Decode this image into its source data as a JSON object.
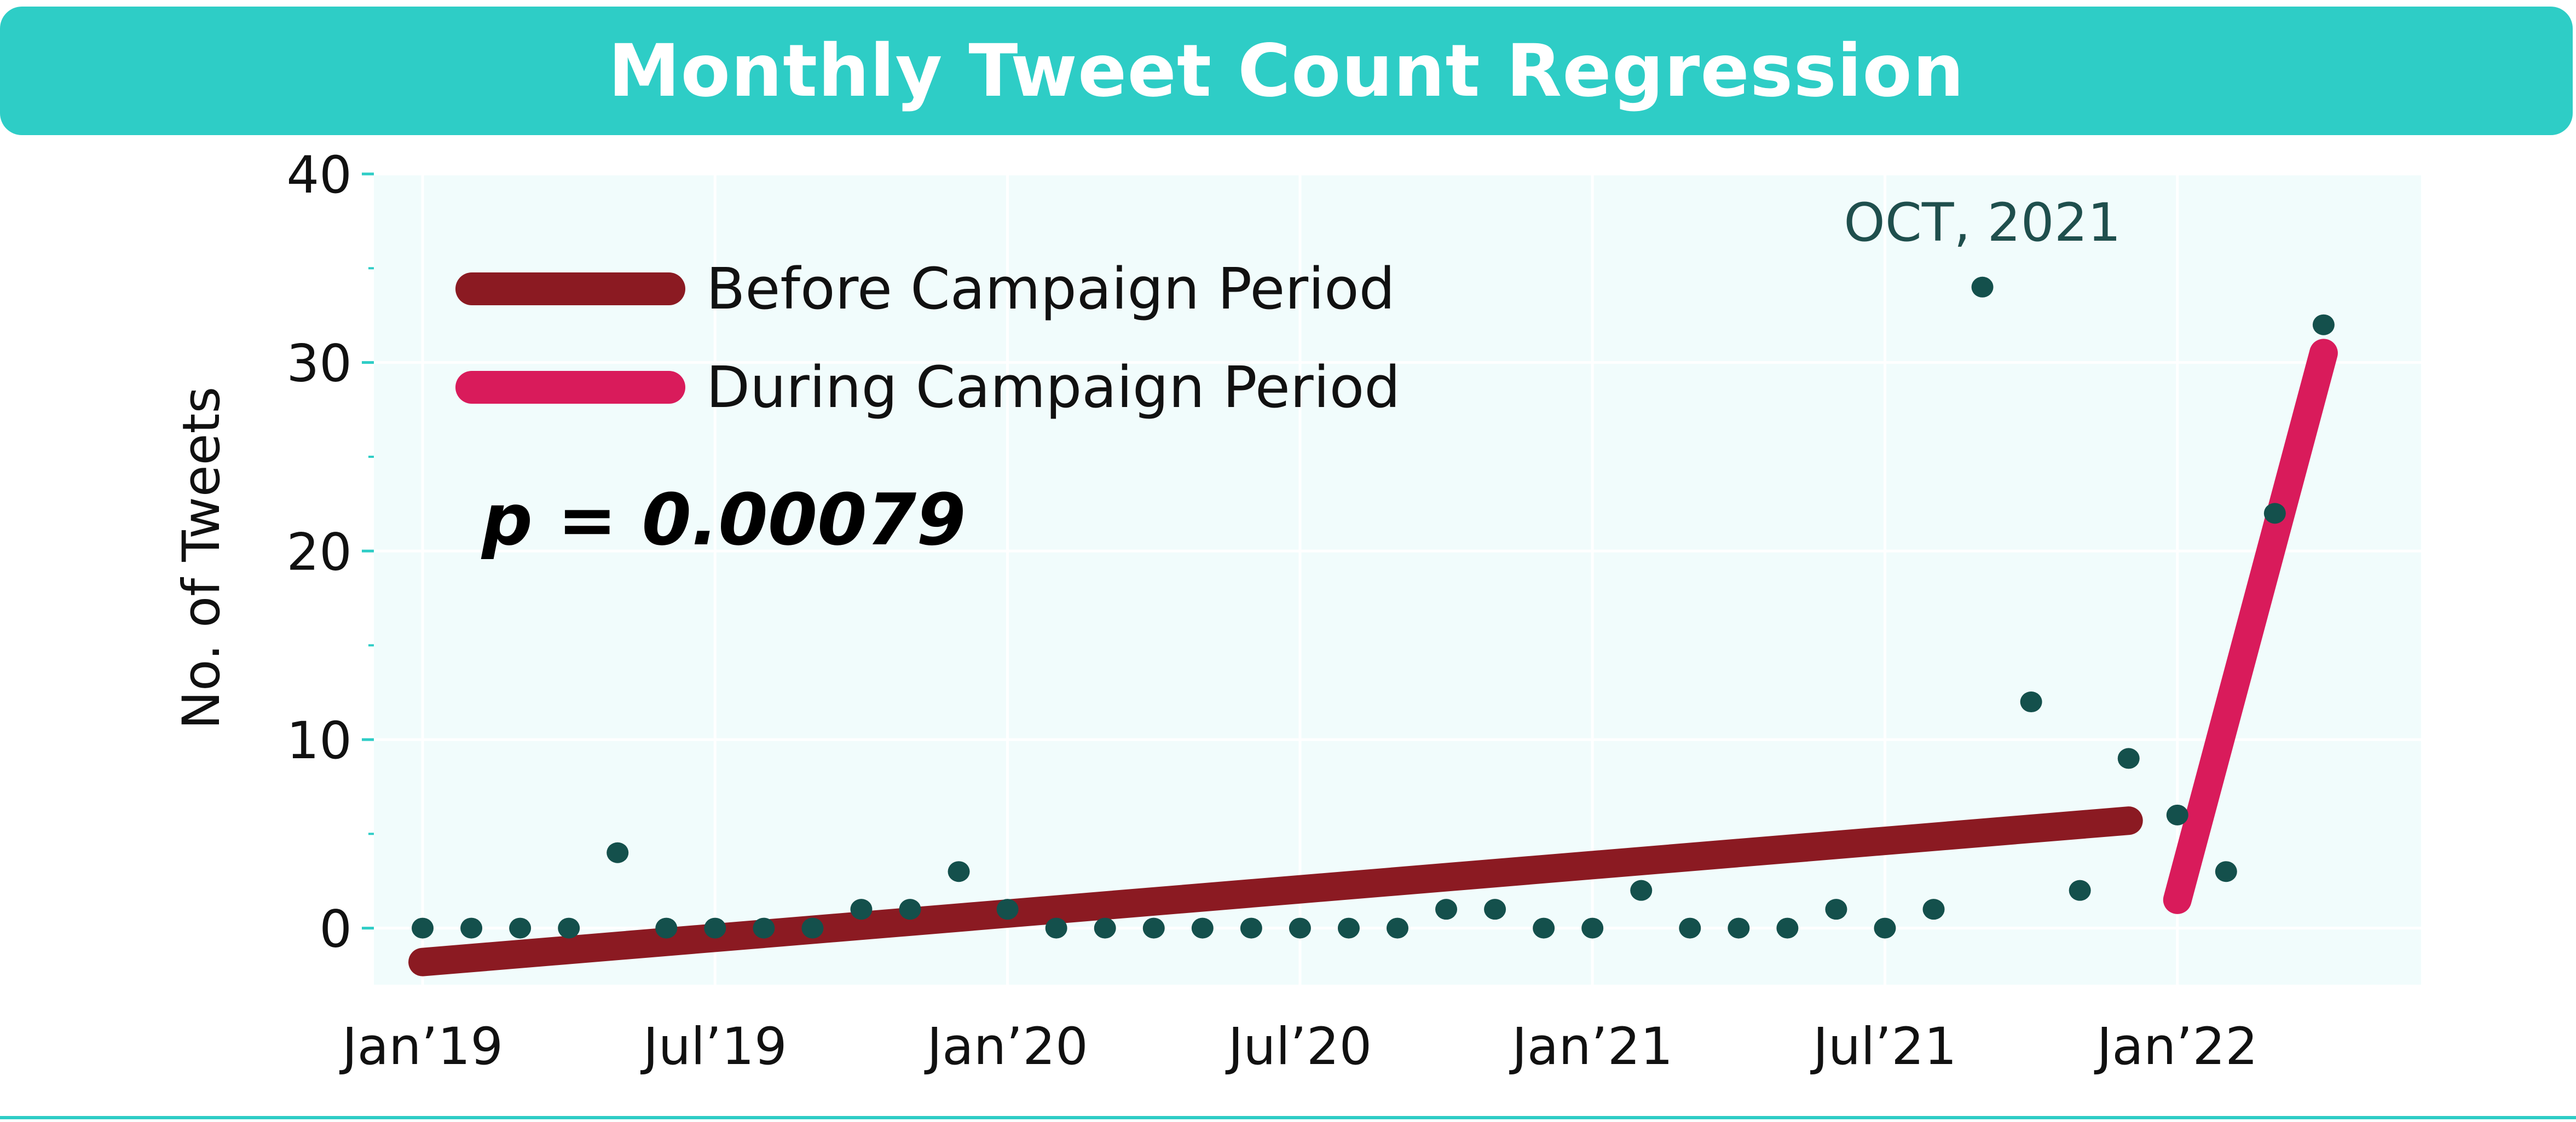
{
  "title": "Monthly Tweet Count Regression",
  "chart_data": {
    "type": "scatter",
    "title": "Monthly Tweet Count Regression",
    "xlabel": "",
    "ylabel": "No. of Tweets",
    "ylim": [
      -3,
      40
    ],
    "yticks": [
      0,
      10,
      20,
      30,
      40
    ],
    "xlim": [
      "2018-12",
      "2022-06"
    ],
    "xticks": [
      {
        "x": "2019-01",
        "label": "Jan’19"
      },
      {
        "x": "2019-07",
        "label": "Jul’19"
      },
      {
        "x": "2020-01",
        "label": "Jan’20"
      },
      {
        "x": "2020-07",
        "label": "Jul’20"
      },
      {
        "x": "2021-01",
        "label": "Jan’21"
      },
      {
        "x": "2021-07",
        "label": "Jul’21"
      },
      {
        "x": "2022-01",
        "label": "Jan’22"
      }
    ],
    "grid": true,
    "legend_position": "top-left",
    "points": [
      {
        "x": "2019-01",
        "y": 0
      },
      {
        "x": "2019-02",
        "y": 0
      },
      {
        "x": "2019-03",
        "y": 0
      },
      {
        "x": "2019-04",
        "y": 0
      },
      {
        "x": "2019-05",
        "y": 4
      },
      {
        "x": "2019-06",
        "y": 0
      },
      {
        "x": "2019-07",
        "y": 0
      },
      {
        "x": "2019-08",
        "y": 0
      },
      {
        "x": "2019-09",
        "y": 0
      },
      {
        "x": "2019-10",
        "y": 1
      },
      {
        "x": "2019-11",
        "y": 1
      },
      {
        "x": "2019-12",
        "y": 3
      },
      {
        "x": "2020-01",
        "y": 1
      },
      {
        "x": "2020-02",
        "y": 0
      },
      {
        "x": "2020-03",
        "y": 0
      },
      {
        "x": "2020-04",
        "y": 0
      },
      {
        "x": "2020-05",
        "y": 0
      },
      {
        "x": "2020-06",
        "y": 0
      },
      {
        "x": "2020-07",
        "y": 0
      },
      {
        "x": "2020-08",
        "y": 0
      },
      {
        "x": "2020-09",
        "y": 0
      },
      {
        "x": "2020-10",
        "y": 1
      },
      {
        "x": "2020-11",
        "y": 1
      },
      {
        "x": "2020-12",
        "y": 0
      },
      {
        "x": "2021-01",
        "y": 0
      },
      {
        "x": "2021-02",
        "y": 2
      },
      {
        "x": "2021-03",
        "y": 0
      },
      {
        "x": "2021-04",
        "y": 0
      },
      {
        "x": "2021-05",
        "y": 0
      },
      {
        "x": "2021-06",
        "y": 1
      },
      {
        "x": "2021-07",
        "y": 0
      },
      {
        "x": "2021-08",
        "y": 1
      },
      {
        "x": "2021-09",
        "y": 34
      },
      {
        "x": "2021-10",
        "y": 12
      },
      {
        "x": "2021-11",
        "y": 2
      },
      {
        "x": "2021-12",
        "y": 9
      },
      {
        "x": "2022-01",
        "y": 6
      },
      {
        "x": "2022-02",
        "y": 3
      },
      {
        "x": "2022-03",
        "y": 22
      },
      {
        "x": "2022-04",
        "y": 32
      }
    ],
    "series": [
      {
        "name": "Before Campaign Period",
        "color": "#8b1a22",
        "line": [
          {
            "x": "2019-01",
            "y": -1.8
          },
          {
            "x": "2021-12",
            "y": 5.7
          }
        ]
      },
      {
        "name": "During Campaign Period",
        "color": "#d91b5b",
        "line": [
          {
            "x": "2022-01",
            "y": 1.5
          },
          {
            "x": "2022-04",
            "y": 30.5
          }
        ]
      }
    ],
    "point_color": "#14504c",
    "annotations": [
      {
        "text": "OCT, 2021"
      },
      {
        "text": "p = 0.00079"
      }
    ]
  }
}
